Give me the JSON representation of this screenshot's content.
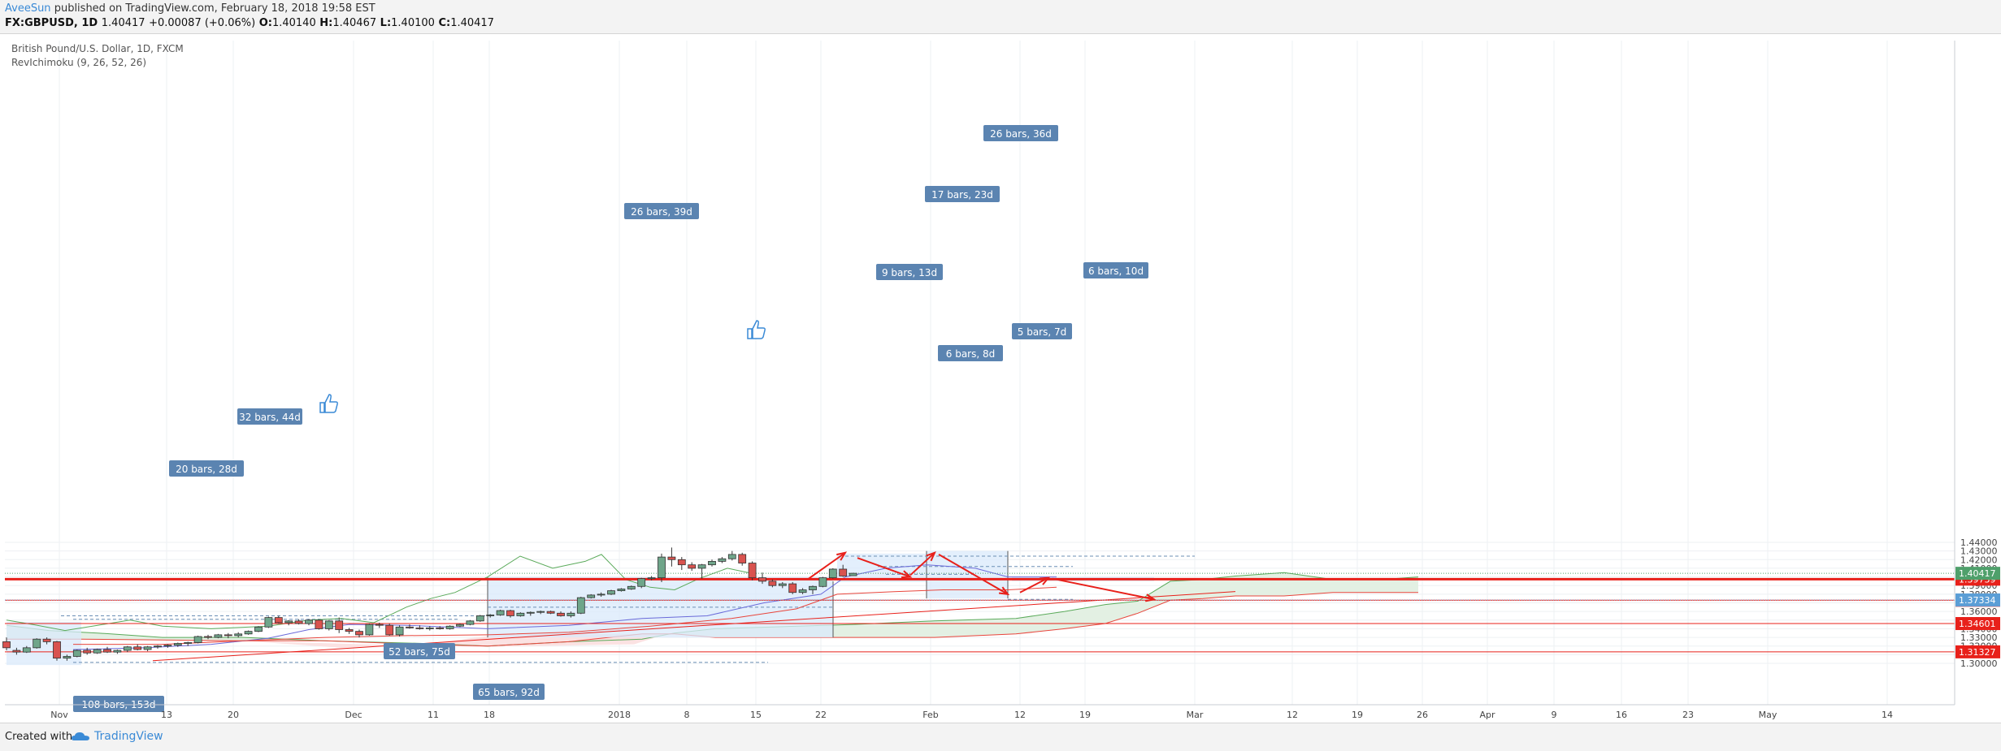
{
  "header": {
    "user": "AveeSun",
    "published": "published on TradingView.com, February 18, 2018 19:58 EST",
    "symbol": "FX:GBPUSD, 1D",
    "last": "1.40417",
    "change": "+0.00087 (+0.06%)",
    "open_label": "O:",
    "open": "1.40140",
    "high_label": "H:",
    "high": "1.40467",
    "low_label": "L:",
    "low": "1.40100",
    "close_label": "C:",
    "close": "1.40417"
  },
  "footer": {
    "created_with": "Created with",
    "brand": "TradingView"
  },
  "chart_data": {
    "type": "candlestick",
    "title": "British Pound/U.S. Dollar, 1D, FXCM",
    "indicator": "RevIchimoku (9, 26, 52, 26)",
    "ylim": [
      1.295,
      1.445
    ],
    "y_ticks": [
      "1.44000",
      "1.43000",
      "1.42000",
      "1.41000",
      "1.40000",
      "1.39000",
      "1.38000",
      "1.37000",
      "1.36000",
      "1.35000",
      "1.34000",
      "1.33000",
      "1.32000",
      "1.31000",
      "1.30000"
    ],
    "x_ticks": [
      "Nov",
      "13",
      "20",
      "Dec",
      "11",
      "18",
      "2018",
      "8",
      "15",
      "22",
      "Feb",
      "12",
      "19",
      "Mar",
      "12",
      "19",
      "26",
      "Apr",
      "9",
      "16",
      "23",
      "May",
      "14"
    ],
    "grid": true,
    "candles": [
      {
        "o": 1.325,
        "h": 1.33,
        "l": 1.315,
        "c": 1.318
      },
      {
        "o": 1.315,
        "h": 1.318,
        "l": 1.31,
        "c": 1.313
      },
      {
        "o": 1.313,
        "h": 1.32,
        "l": 1.312,
        "c": 1.318
      },
      {
        "o": 1.318,
        "h": 1.329,
        "l": 1.317,
        "c": 1.328
      },
      {
        "o": 1.328,
        "h": 1.33,
        "l": 1.322,
        "c": 1.325
      },
      {
        "o": 1.325,
        "h": 1.326,
        "l": 1.303,
        "c": 1.306
      },
      {
        "o": 1.306,
        "h": 1.31,
        "l": 1.303,
        "c": 1.308
      },
      {
        "o": 1.308,
        "h": 1.316,
        "l": 1.307,
        "c": 1.315
      },
      {
        "o": 1.315,
        "h": 1.318,
        "l": 1.31,
        "c": 1.312
      },
      {
        "o": 1.312,
        "h": 1.317,
        "l": 1.311,
        "c": 1.316
      },
      {
        "o": 1.316,
        "h": 1.319,
        "l": 1.312,
        "c": 1.313
      },
      {
        "o": 1.313,
        "h": 1.316,
        "l": 1.311,
        "c": 1.315
      },
      {
        "o": 1.315,
        "h": 1.32,
        "l": 1.313,
        "c": 1.319
      },
      {
        "o": 1.319,
        "h": 1.322,
        "l": 1.315,
        "c": 1.316
      },
      {
        "o": 1.316,
        "h": 1.32,
        "l": 1.314,
        "c": 1.319
      },
      {
        "o": 1.319,
        "h": 1.321,
        "l": 1.317,
        "c": 1.32
      },
      {
        "o": 1.32,
        "h": 1.322,
        "l": 1.318,
        "c": 1.321
      },
      {
        "o": 1.321,
        "h": 1.324,
        "l": 1.319,
        "c": 1.323
      },
      {
        "o": 1.323,
        "h": 1.325,
        "l": 1.32,
        "c": 1.324
      },
      {
        "o": 1.324,
        "h": 1.332,
        "l": 1.323,
        "c": 1.331
      },
      {
        "o": 1.331,
        "h": 1.333,
        "l": 1.328,
        "c": 1.33
      },
      {
        "o": 1.33,
        "h": 1.334,
        "l": 1.329,
        "c": 1.333
      },
      {
        "o": 1.333,
        "h": 1.335,
        "l": 1.329,
        "c": 1.332
      },
      {
        "o": 1.332,
        "h": 1.336,
        "l": 1.33,
        "c": 1.334
      },
      {
        "o": 1.334,
        "h": 1.338,
        "l": 1.333,
        "c": 1.337
      },
      {
        "o": 1.337,
        "h": 1.343,
        "l": 1.336,
        "c": 1.342
      },
      {
        "o": 1.342,
        "h": 1.354,
        "l": 1.341,
        "c": 1.353
      },
      {
        "o": 1.353,
        "h": 1.355,
        "l": 1.346,
        "c": 1.347
      },
      {
        "o": 1.347,
        "h": 1.35,
        "l": 1.344,
        "c": 1.349
      },
      {
        "o": 1.349,
        "h": 1.351,
        "l": 1.345,
        "c": 1.346
      },
      {
        "o": 1.346,
        "h": 1.351,
        "l": 1.344,
        "c": 1.35
      },
      {
        "o": 1.35,
        "h": 1.351,
        "l": 1.339,
        "c": 1.34
      },
      {
        "o": 1.34,
        "h": 1.35,
        "l": 1.338,
        "c": 1.349
      },
      {
        "o": 1.349,
        "h": 1.353,
        "l": 1.335,
        "c": 1.339
      },
      {
        "o": 1.339,
        "h": 1.341,
        "l": 1.334,
        "c": 1.337
      },
      {
        "o": 1.337,
        "h": 1.339,
        "l": 1.33,
        "c": 1.333
      },
      {
        "o": 1.333,
        "h": 1.346,
        "l": 1.332,
        "c": 1.345
      },
      {
        "o": 1.345,
        "h": 1.347,
        "l": 1.341,
        "c": 1.344
      },
      {
        "o": 1.344,
        "h": 1.346,
        "l": 1.332,
        "c": 1.333
      },
      {
        "o": 1.333,
        "h": 1.344,
        "l": 1.331,
        "c": 1.342
      },
      {
        "o": 1.342,
        "h": 1.345,
        "l": 1.34,
        "c": 1.341
      },
      {
        "o": 1.341,
        "h": 1.344,
        "l": 1.339,
        "c": 1.34
      },
      {
        "o": 1.34,
        "h": 1.343,
        "l": 1.338,
        "c": 1.341
      },
      {
        "o": 1.341,
        "h": 1.343,
        "l": 1.339,
        "c": 1.34
      },
      {
        "o": 1.34,
        "h": 1.344,
        "l": 1.339,
        "c": 1.343
      },
      {
        "o": 1.343,
        "h": 1.346,
        "l": 1.342,
        "c": 1.345
      },
      {
        "o": 1.345,
        "h": 1.35,
        "l": 1.344,
        "c": 1.349
      },
      {
        "o": 1.349,
        "h": 1.356,
        "l": 1.348,
        "c": 1.355
      },
      {
        "o": 1.355,
        "h": 1.357,
        "l": 1.353,
        "c": 1.356
      },
      {
        "o": 1.356,
        "h": 1.362,
        "l": 1.355,
        "c": 1.361
      },
      {
        "o": 1.361,
        "h": 1.362,
        "l": 1.353,
        "c": 1.355
      },
      {
        "o": 1.355,
        "h": 1.359,
        "l": 1.354,
        "c": 1.358
      },
      {
        "o": 1.358,
        "h": 1.36,
        "l": 1.355,
        "c": 1.359
      },
      {
        "o": 1.359,
        "h": 1.361,
        "l": 1.357,
        "c": 1.36
      },
      {
        "o": 1.36,
        "h": 1.361,
        "l": 1.357,
        "c": 1.358
      },
      {
        "o": 1.358,
        "h": 1.36,
        "l": 1.354,
        "c": 1.355
      },
      {
        "o": 1.355,
        "h": 1.36,
        "l": 1.353,
        "c": 1.358
      },
      {
        "o": 1.358,
        "h": 1.377,
        "l": 1.357,
        "c": 1.376
      },
      {
        "o": 1.376,
        "h": 1.38,
        "l": 1.375,
        "c": 1.379
      },
      {
        "o": 1.379,
        "h": 1.382,
        "l": 1.377,
        "c": 1.38
      },
      {
        "o": 1.38,
        "h": 1.385,
        "l": 1.379,
        "c": 1.384
      },
      {
        "o": 1.384,
        "h": 1.387,
        "l": 1.383,
        "c": 1.386
      },
      {
        "o": 1.386,
        "h": 1.39,
        "l": 1.385,
        "c": 1.389
      },
      {
        "o": 1.389,
        "h": 1.399,
        "l": 1.387,
        "c": 1.398
      },
      {
        "o": 1.398,
        "h": 1.401,
        "l": 1.396,
        "c": 1.399
      },
      {
        "o": 1.399,
        "h": 1.427,
        "l": 1.394,
        "c": 1.423
      },
      {
        "o": 1.423,
        "h": 1.434,
        "l": 1.412,
        "c": 1.42
      },
      {
        "o": 1.42,
        "h": 1.423,
        "l": 1.408,
        "c": 1.414
      },
      {
        "o": 1.414,
        "h": 1.417,
        "l": 1.407,
        "c": 1.41
      },
      {
        "o": 1.41,
        "h": 1.415,
        "l": 1.398,
        "c": 1.414
      },
      {
        "o": 1.414,
        "h": 1.42,
        "l": 1.412,
        "c": 1.418
      },
      {
        "o": 1.418,
        "h": 1.423,
        "l": 1.416,
        "c": 1.421
      },
      {
        "o": 1.421,
        "h": 1.43,
        "l": 1.419,
        "c": 1.426
      },
      {
        "o": 1.426,
        "h": 1.428,
        "l": 1.413,
        "c": 1.416
      },
      {
        "o": 1.416,
        "h": 1.418,
        "l": 1.396,
        "c": 1.399
      },
      {
        "o": 1.399,
        "h": 1.405,
        "l": 1.392,
        "c": 1.395
      },
      {
        "o": 1.395,
        "h": 1.397,
        "l": 1.388,
        "c": 1.39
      },
      {
        "o": 1.39,
        "h": 1.394,
        "l": 1.387,
        "c": 1.392
      },
      {
        "o": 1.392,
        "h": 1.394,
        "l": 1.38,
        "c": 1.382
      },
      {
        "o": 1.382,
        "h": 1.387,
        "l": 1.38,
        "c": 1.385
      },
      {
        "o": 1.385,
        "h": 1.39,
        "l": 1.38,
        "c": 1.389
      },
      {
        "o": 1.389,
        "h": 1.4,
        "l": 1.388,
        "c": 1.399
      },
      {
        "o": 1.399,
        "h": 1.41,
        "l": 1.398,
        "c": 1.409
      },
      {
        "o": 1.409,
        "h": 1.414,
        "l": 1.4,
        "c": 1.401
      },
      {
        "o": 1.4014,
        "h": 1.4047,
        "l": 1.401,
        "c": 1.4042
      }
    ],
    "horizontal_levels": [
      {
        "label": "1.39739",
        "value": 1.39739,
        "color": "#e8201a",
        "bold": true
      },
      {
        "label": "1.37301",
        "value": 1.37301,
        "color": "#e8201a",
        "bold": false
      },
      {
        "label": "1.34601",
        "value": 1.34601,
        "color": "#e8201a",
        "bold": false
      },
      {
        "label": "1.31327",
        "value": 1.31327,
        "color": "#e8201a",
        "bold": false
      }
    ],
    "price_labels": [
      {
        "label": "1.40417",
        "value": 1.40417,
        "color": "#4fa06b"
      },
      {
        "label": "1.37334",
        "value": 1.37334,
        "color": "#5b9ed6"
      }
    ],
    "bar_labels": [
      "108 bars, 153d",
      "52 bars, 75d",
      "65 bars, 92d",
      "32 bars, 44d",
      "20 bars, 28d",
      "26 bars, 39d",
      "26 bars, 36d",
      "17 bars, 23d",
      "9 bars, 13d",
      "6 bars, 8d",
      "5 bars, 7d",
      "6 bars, 10d"
    ],
    "colors": {
      "up": "#6fa58a",
      "down": "#d9534f",
      "grid": "#eef0f3",
      "cloud_up": "#e3f0e3",
      "cloud_down": "#fbe2e2",
      "range": "#d9e9fb",
      "label_bg": "#5b84b1"
    }
  }
}
